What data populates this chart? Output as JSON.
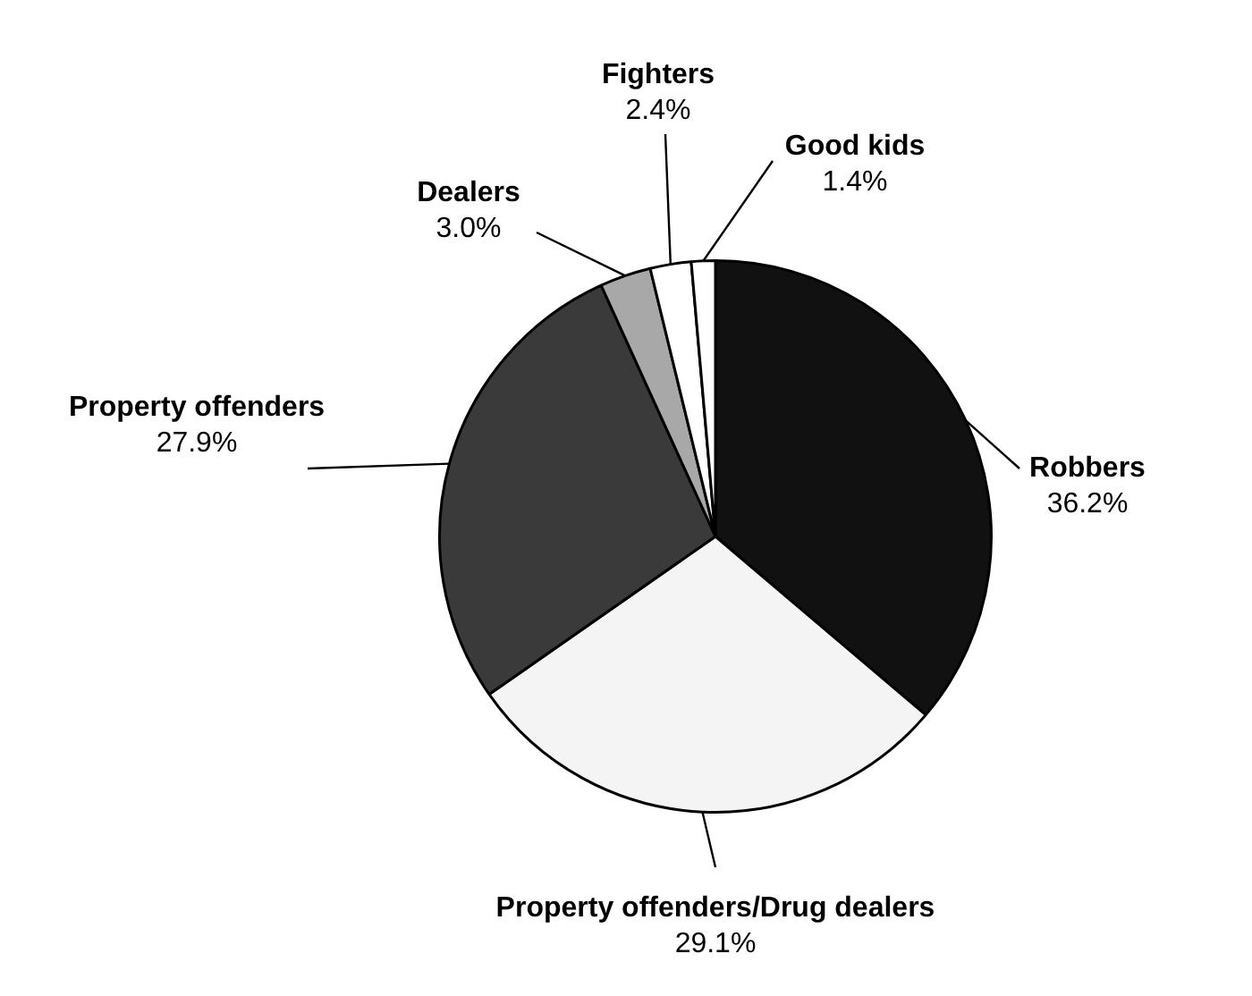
{
  "chart_data": {
    "type": "pie",
    "categories": [
      "Robbers",
      "Property offenders/Drug dealers",
      "Property offenders",
      "Dealers",
      "Fighters",
      "Good kids"
    ],
    "values": [
      36.2,
      29.1,
      27.9,
      3.0,
      2.4,
      1.4
    ],
    "colors": [
      "#111111",
      "#f4f4f4",
      "#3a3a3a",
      "#a8a8a8",
      "#ffffff",
      "#ffffff"
    ],
    "value_labels": [
      "36.2%",
      "29.1%",
      "27.9%",
      "3.0%",
      "2.4%",
      "1.4%"
    ],
    "legend": false
  }
}
